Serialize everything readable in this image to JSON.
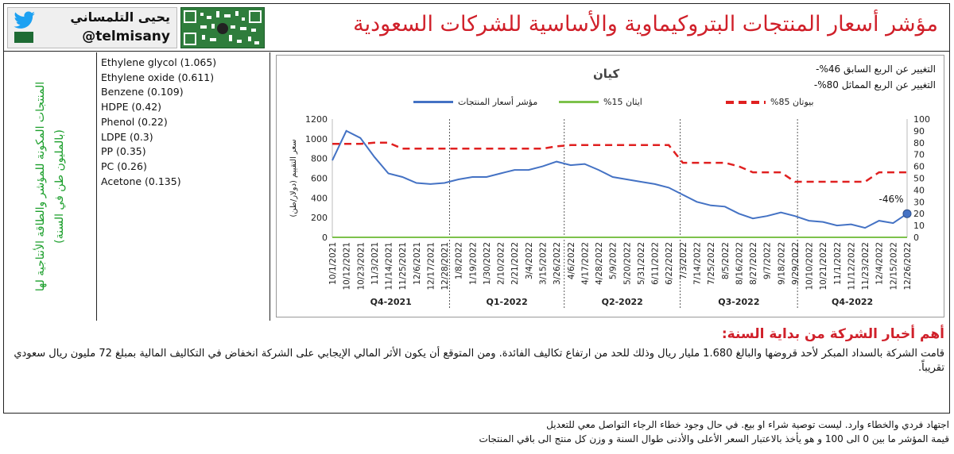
{
  "header": {
    "title": "مؤشر أسعار المنتجات البتروكيماوية والأساسية للشركات السعودية",
    "brand_name": "يحيى التلمساني",
    "brand_handle": "@telmisany"
  },
  "left": {
    "vertical_label": "المنتجات المكونة للمؤشر والطاقة الأنتاجية لها (بالمليون طن في السنة)",
    "products": [
      "Ethylene glycol (1.065)",
      "Ethylene oxide (0.611)",
      "Benzene (0.109)",
      "HDPE (0.42)",
      "Phenol (0.22)",
      "LDPE (0.3)",
      "PP (0.35)",
      "PC (0.26)",
      "Acetone (0.135)"
    ]
  },
  "chart_data": {
    "type": "line",
    "title": "كيان",
    "change_quarter": "التغيير عن الربع السابق 46%-",
    "change_year": "التغيير عن الربع المماثل 80%-",
    "ylabel": "سعر التقييم (دولار/طن)",
    "ylim_left": [
      0,
      1200
    ],
    "ylim_right": [
      0,
      100
    ],
    "left_ticks": [
      "0",
      "200",
      "400",
      "600",
      "800",
      "1000",
      "1200"
    ],
    "right_ticks": [
      "0",
      "10",
      "20",
      "30",
      "40",
      "50",
      "60",
      "70",
      "80",
      "90",
      "100"
    ],
    "end_annotation": "-46%",
    "x_dates": [
      "10/1/2021",
      "10/12/2021",
      "10/23/2021",
      "11/3/2021",
      "11/14/2021",
      "11/25/2021",
      "12/6/2021",
      "12/17/2021",
      "12/28/2021",
      "1/8/2022",
      "1/19/2022",
      "1/30/2022",
      "2/10/2022",
      "2/21/2022",
      "3/4/2022",
      "3/15/2022",
      "3/26/2022",
      "4/6/2022",
      "4/17/2022",
      "4/28/2022",
      "5/9/2022",
      "5/20/2022",
      "5/31/2022",
      "6/11/2022",
      "6/22/2022",
      "7/3/2022",
      "7/14/2022",
      "7/25/2022",
      "8/5/2022",
      "8/16/2022",
      "8/27/2022",
      "9/7/2022",
      "9/18/2022",
      "9/29/2022",
      "10/10/2022",
      "10/21/2022",
      "11/1/2022",
      "11/12/2022",
      "11/23/2022",
      "12/4/2022",
      "12/15/2022",
      "12/26/2022"
    ],
    "quarters": [
      "Q4-2021",
      "Q1-2022",
      "Q2-2022",
      "Q3-2022",
      "Q4-2022"
    ],
    "series": [
      {
        "name": "مؤشر أسعار المنتجات",
        "color": "#4472c4",
        "axis": "right",
        "values": [
          65,
          90,
          84,
          68,
          54,
          51,
          46,
          45,
          46,
          49,
          51,
          51,
          54,
          57,
          57,
          60,
          64,
          61,
          62,
          57,
          51,
          49,
          47,
          45,
          42,
          36,
          30,
          27,
          26,
          20,
          16,
          18,
          21,
          18,
          14,
          13,
          10,
          11,
          8,
          14,
          12,
          20
        ]
      },
      {
        "name": "ايثان 15%",
        "color": "#7dc24b",
        "axis": "left",
        "values": [
          0,
          0,
          0,
          0,
          0,
          0,
          0,
          0,
          0,
          0,
          0,
          0,
          0,
          0,
          0,
          0,
          0,
          0,
          0,
          0,
          0,
          0,
          0,
          0,
          0,
          0,
          0,
          0,
          0,
          0,
          0,
          0,
          0,
          0,
          0,
          0,
          0,
          0,
          0,
          0,
          0,
          0
        ]
      },
      {
        "name": "بيوتان 85%",
        "color": "#e02020",
        "axis": "right",
        "values": [
          79,
          79,
          79,
          80,
          80,
          75,
          75,
          75,
          75,
          75,
          75,
          75,
          75,
          75,
          75,
          75,
          77,
          78,
          78,
          78,
          78,
          78,
          78,
          78,
          78,
          63,
          63,
          63,
          63,
          60,
          55,
          55,
          55,
          47,
          47,
          47,
          47,
          47,
          47,
          55,
          55,
          55
        ]
      }
    ]
  },
  "news": {
    "heading": "أهم أخبار الشركة من بداية السنة:",
    "body": "قامت الشركة بالسداد المبكر لأحد قروضها والبالغ 1.680 مليار ريال وذلك للحد من ارتفاع تكاليف الفائدة. ومن المتوقع أن يكون الأثر المالي الإيجابي على الشركة انخفاض في التكاليف المالية بمبلغ 72 مليون ريال سعودي تقريباً."
  },
  "footer": {
    "line1": "اجتهاد فردي والخطاء وارد. ليست توصية شراء او بيع. في حال وجود خطاء الرجاء التواصل معي للتعديل",
    "line2": "قيمة المؤشر ما بين 0 الى 100 و هو يأخذ بالاعتبار السعر الأعلى والأدنى طوال السنة و وزن كل منتج الى باقي المنتجات"
  }
}
